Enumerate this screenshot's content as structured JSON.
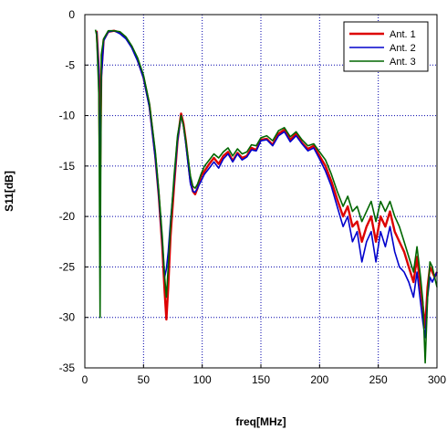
{
  "chart_data": {
    "type": "line",
    "title": "",
    "xlabel": "freq[MHz]",
    "ylabel": "S11[dB]",
    "xlim": [
      0,
      300
    ],
    "ylim": [
      -35,
      0
    ],
    "xticks": [
      0,
      50,
      100,
      150,
      200,
      250,
      300
    ],
    "yticks": [
      0,
      -5,
      -10,
      -15,
      -20,
      -25,
      -30,
      -35
    ],
    "grid": true,
    "legend_position": "top-right",
    "series": [
      {
        "name": "Ant. 1",
        "color": "#dd0000",
        "x": [
          10,
          12,
          13,
          14,
          16,
          20,
          25,
          30,
          35,
          40,
          45,
          50,
          55,
          60,
          63,
          66,
          68,
          69.5,
          71,
          73,
          76,
          79,
          82,
          84,
          86,
          88,
          90,
          92,
          94,
          96,
          99,
          102,
          106,
          110,
          114,
          118,
          122,
          126,
          130,
          134,
          138,
          142,
          146,
          150,
          155,
          160,
          165,
          170,
          175,
          180,
          185,
          190,
          195,
          200,
          205,
          210,
          215,
          220,
          224,
          228,
          232,
          236,
          240,
          244,
          248,
          252,
          256,
          260,
          264,
          268,
          272,
          276,
          280,
          283,
          286,
          288,
          290,
          292,
          294,
          296,
          298,
          300
        ],
        "y": [
          -1.6,
          -5.5,
          -16.5,
          -6,
          -2.5,
          -1.7,
          -1.6,
          -1.8,
          -2.3,
          -3.2,
          -4.5,
          -6.2,
          -9,
          -14,
          -18,
          -23,
          -27.5,
          -30.2,
          -27,
          -22,
          -17,
          -12.5,
          -9.8,
          -10.8,
          -12.5,
          -14.5,
          -16.5,
          -17.5,
          -17.8,
          -17.2,
          -16,
          -15.5,
          -14.8,
          -14.2,
          -14.8,
          -14,
          -13.6,
          -14.5,
          -13.7,
          -14.2,
          -14,
          -13.2,
          -13.4,
          -12.4,
          -12.3,
          -12.9,
          -11.8,
          -11.4,
          -12.4,
          -11.8,
          -12.7,
          -13.3,
          -13,
          -14,
          -15,
          -16.5,
          -18.3,
          -20,
          -19,
          -21,
          -20.5,
          -22.5,
          -21,
          -20,
          -22.5,
          -20,
          -21,
          -19.5,
          -21.5,
          -22.5,
          -23.5,
          -25,
          -26.5,
          -24,
          -27,
          -29,
          -31,
          -27,
          -25,
          -25.5,
          -26,
          -25.5
        ]
      },
      {
        "name": "Ant. 2",
        "color": "#0000cc",
        "x": [
          10,
          12,
          13,
          14,
          16,
          20,
          25,
          30,
          35,
          40,
          45,
          50,
          55,
          60,
          63,
          66,
          68,
          69.5,
          71,
          73,
          76,
          79,
          82,
          84,
          86,
          88,
          90,
          92,
          94,
          96,
          99,
          102,
          106,
          110,
          114,
          118,
          122,
          126,
          130,
          134,
          138,
          142,
          146,
          150,
          155,
          160,
          165,
          170,
          175,
          180,
          185,
          190,
          195,
          200,
          205,
          210,
          215,
          220,
          224,
          228,
          232,
          236,
          240,
          244,
          248,
          252,
          256,
          260,
          264,
          268,
          272,
          276,
          280,
          283,
          286,
          288,
          290,
          292,
          294,
          296,
          298,
          300
        ],
        "y": [
          -1.7,
          -5.7,
          -18.5,
          -6.5,
          -2.6,
          -1.7,
          -1.6,
          -1.9,
          -2.4,
          -3.3,
          -4.6,
          -6.3,
          -9.2,
          -14.2,
          -18,
          -22.5,
          -26,
          -25.2,
          -23.5,
          -20.5,
          -16.5,
          -12.5,
          -10,
          -11,
          -12.8,
          -14.8,
          -16.8,
          -17.5,
          -17.6,
          -17.2,
          -16.5,
          -15.8,
          -15.2,
          -14.6,
          -15.2,
          -14.3,
          -13.8,
          -14.6,
          -13.8,
          -14.4,
          -14.1,
          -13.4,
          -13.5,
          -12.5,
          -12.4,
          -13,
          -12,
          -11.6,
          -12.6,
          -12,
          -12.8,
          -13.5,
          -13.2,
          -14.3,
          -15.5,
          -17,
          -19,
          -21,
          -20,
          -22.5,
          -21.5,
          -24.5,
          -22.5,
          -21.5,
          -24.5,
          -21.5,
          -23,
          -21,
          -23.5,
          -25,
          -25.5,
          -26.5,
          -28,
          -25.5,
          -28.5,
          -30.5,
          -32,
          -28,
          -26,
          -26.5,
          -26,
          -25.5
        ]
      },
      {
        "name": "Ant. 3",
        "color": "#006600",
        "x": [
          9,
          10,
          11,
          12,
          13,
          14,
          16,
          20,
          25,
          30,
          35,
          40,
          45,
          50,
          55,
          60,
          63,
          66,
          68,
          69.5,
          71,
          73,
          76,
          79,
          82,
          84,
          86,
          88,
          90,
          92,
          94,
          96,
          99,
          102,
          106,
          110,
          114,
          118,
          122,
          126,
          130,
          134,
          138,
          142,
          146,
          150,
          155,
          160,
          165,
          170,
          175,
          180,
          185,
          190,
          195,
          200,
          205,
          210,
          215,
          220,
          224,
          228,
          232,
          236,
          240,
          244,
          248,
          252,
          256,
          260,
          264,
          268,
          272,
          276,
          280,
          283,
          286,
          288,
          290,
          292,
          294,
          296,
          298,
          300
        ],
        "y": [
          -1.5,
          -2,
          -5,
          -8,
          -30,
          -4,
          -2.4,
          -1.6,
          -1.6,
          -1.7,
          -2.2,
          -3.1,
          -4.3,
          -6,
          -8.8,
          -13.5,
          -17.5,
          -22,
          -26,
          -28,
          -25,
          -21,
          -16,
          -12,
          -10,
          -11,
          -12.5,
          -14.2,
          -16,
          -17,
          -17.2,
          -16.8,
          -15.8,
          -15,
          -14.4,
          -13.8,
          -14.2,
          -13.6,
          -13.2,
          -14,
          -13.3,
          -13.8,
          -13.6,
          -12.9,
          -13,
          -12.2,
          -12,
          -12.5,
          -11.5,
          -11.2,
          -12.1,
          -11.6,
          -12.4,
          -13,
          -12.8,
          -13.6,
          -14.4,
          -15.8,
          -17.5,
          -19,
          -18,
          -19.5,
          -19,
          -20.5,
          -19.5,
          -18.5,
          -20.5,
          -18.5,
          -19.5,
          -18.5,
          -20,
          -21,
          -22.5,
          -24,
          -25.5,
          -23,
          -26,
          -28.5,
          -34.5,
          -28,
          -24.5,
          -25,
          -26,
          -27
        ]
      }
    ]
  }
}
